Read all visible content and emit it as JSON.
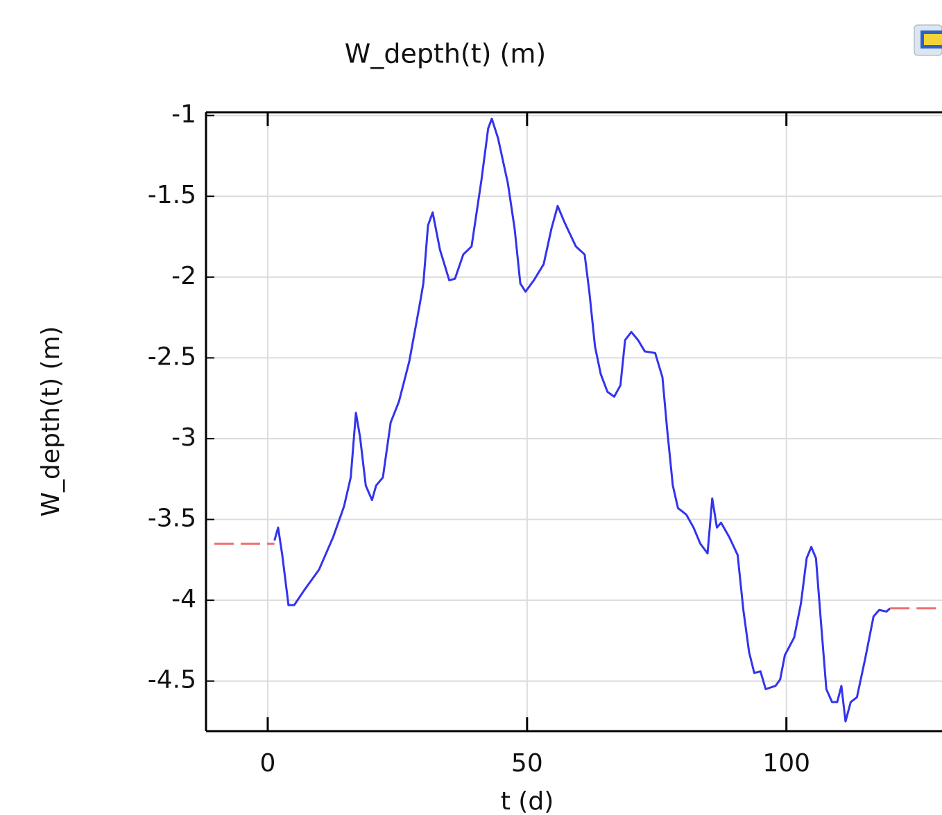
{
  "chart_data": {
    "type": "line",
    "title": "W_depth(t) (m)",
    "x_label": "t (d)",
    "y_label": "W_depth(t) (m)",
    "xlim": [
      -11.9,
      130
    ],
    "ylim": [
      -4.81,
      -0.98
    ],
    "xticks": [
      0,
      50,
      100
    ],
    "yticks": [
      -1,
      -1.5,
      -2,
      -2.5,
      -3,
      -3.5,
      -4,
      -4.5
    ],
    "grid": true,
    "series": [
      {
        "color": "#3333ee",
        "dashed": false,
        "x": [
          1.3,
          2.0,
          2.8,
          4.0,
          5.1,
          7.2,
          9.9,
          12.6,
          14.7,
          16.0,
          17.0,
          17.8,
          18.9,
          20.1,
          20.9,
          22.2,
          23.7,
          25.3,
          27.3,
          29.3,
          30.0,
          30.9,
          31.8,
          33.2,
          35.0,
          36.1,
          37.7,
          39.3,
          41.2,
          42.5,
          43.2,
          44.4,
          46.3,
          47.6,
          48.7,
          49.7,
          51.3,
          53.2,
          54.7,
          55.9,
          57.2,
          59.4,
          61.1,
          62.0,
          63.1,
          64.2,
          65.5,
          66.8,
          68.0,
          68.9,
          70.1,
          71.4,
          72.7,
          74.7,
          76.1,
          77.0,
          78.1,
          79.1,
          80.7,
          82.1,
          83.4,
          84.8,
          85.7,
          86.6,
          87.4,
          89.0,
          90.6,
          91.7,
          92.8,
          93.8,
          95.0,
          96.0,
          97.9,
          98.8,
          99.7,
          101.5,
          102.8,
          103.9,
          104.8,
          105.7,
          106.7,
          107.7,
          108.8,
          109.8,
          110.6,
          111.4,
          112.4,
          113.6,
          115.2,
          116.8,
          117.9,
          119.3,
          120.0
        ],
        "values": [
          -3.63,
          -3.55,
          -3.72,
          -4.03,
          -4.03,
          -3.93,
          -3.81,
          -3.61,
          -3.42,
          -3.24,
          -2.84,
          -2.99,
          -3.29,
          -3.38,
          -3.29,
          -3.24,
          -2.9,
          -2.77,
          -2.52,
          -2.17,
          -2.04,
          -1.68,
          -1.6,
          -1.83,
          -2.02,
          -2.01,
          -1.86,
          -1.81,
          -1.4,
          -1.08,
          -1.02,
          -1.14,
          -1.42,
          -1.7,
          -2.04,
          -2.09,
          -2.02,
          -1.92,
          -1.7,
          -1.56,
          -1.66,
          -1.81,
          -1.86,
          -2.09,
          -2.43,
          -2.6,
          -2.71,
          -2.74,
          -2.67,
          -2.39,
          -2.34,
          -2.39,
          -2.46,
          -2.47,
          -2.62,
          -2.94,
          -3.29,
          -3.43,
          -3.47,
          -3.55,
          -3.65,
          -3.71,
          -3.37,
          -3.55,
          -3.52,
          -3.61,
          -3.72,
          -4.06,
          -4.32,
          -4.45,
          -4.44,
          -4.55,
          -4.53,
          -4.49,
          -4.34,
          -4.23,
          -4.02,
          -3.74,
          -3.67,
          -3.74,
          -4.15,
          -4.55,
          -4.63,
          -4.63,
          -4.53,
          -4.75,
          -4.63,
          -4.6,
          -4.36,
          -4.1,
          -4.06,
          -4.07,
          -4.05
        ]
      },
      {
        "color": "#f07070",
        "dashed": true,
        "x": [
          -10.3,
          1.3
        ],
        "values": [
          -3.65,
          -3.65
        ]
      },
      {
        "color": "#f07070",
        "dashed": true,
        "x": [
          120,
          130
        ],
        "values": [
          -4.05,
          -4.05
        ]
      }
    ]
  }
}
